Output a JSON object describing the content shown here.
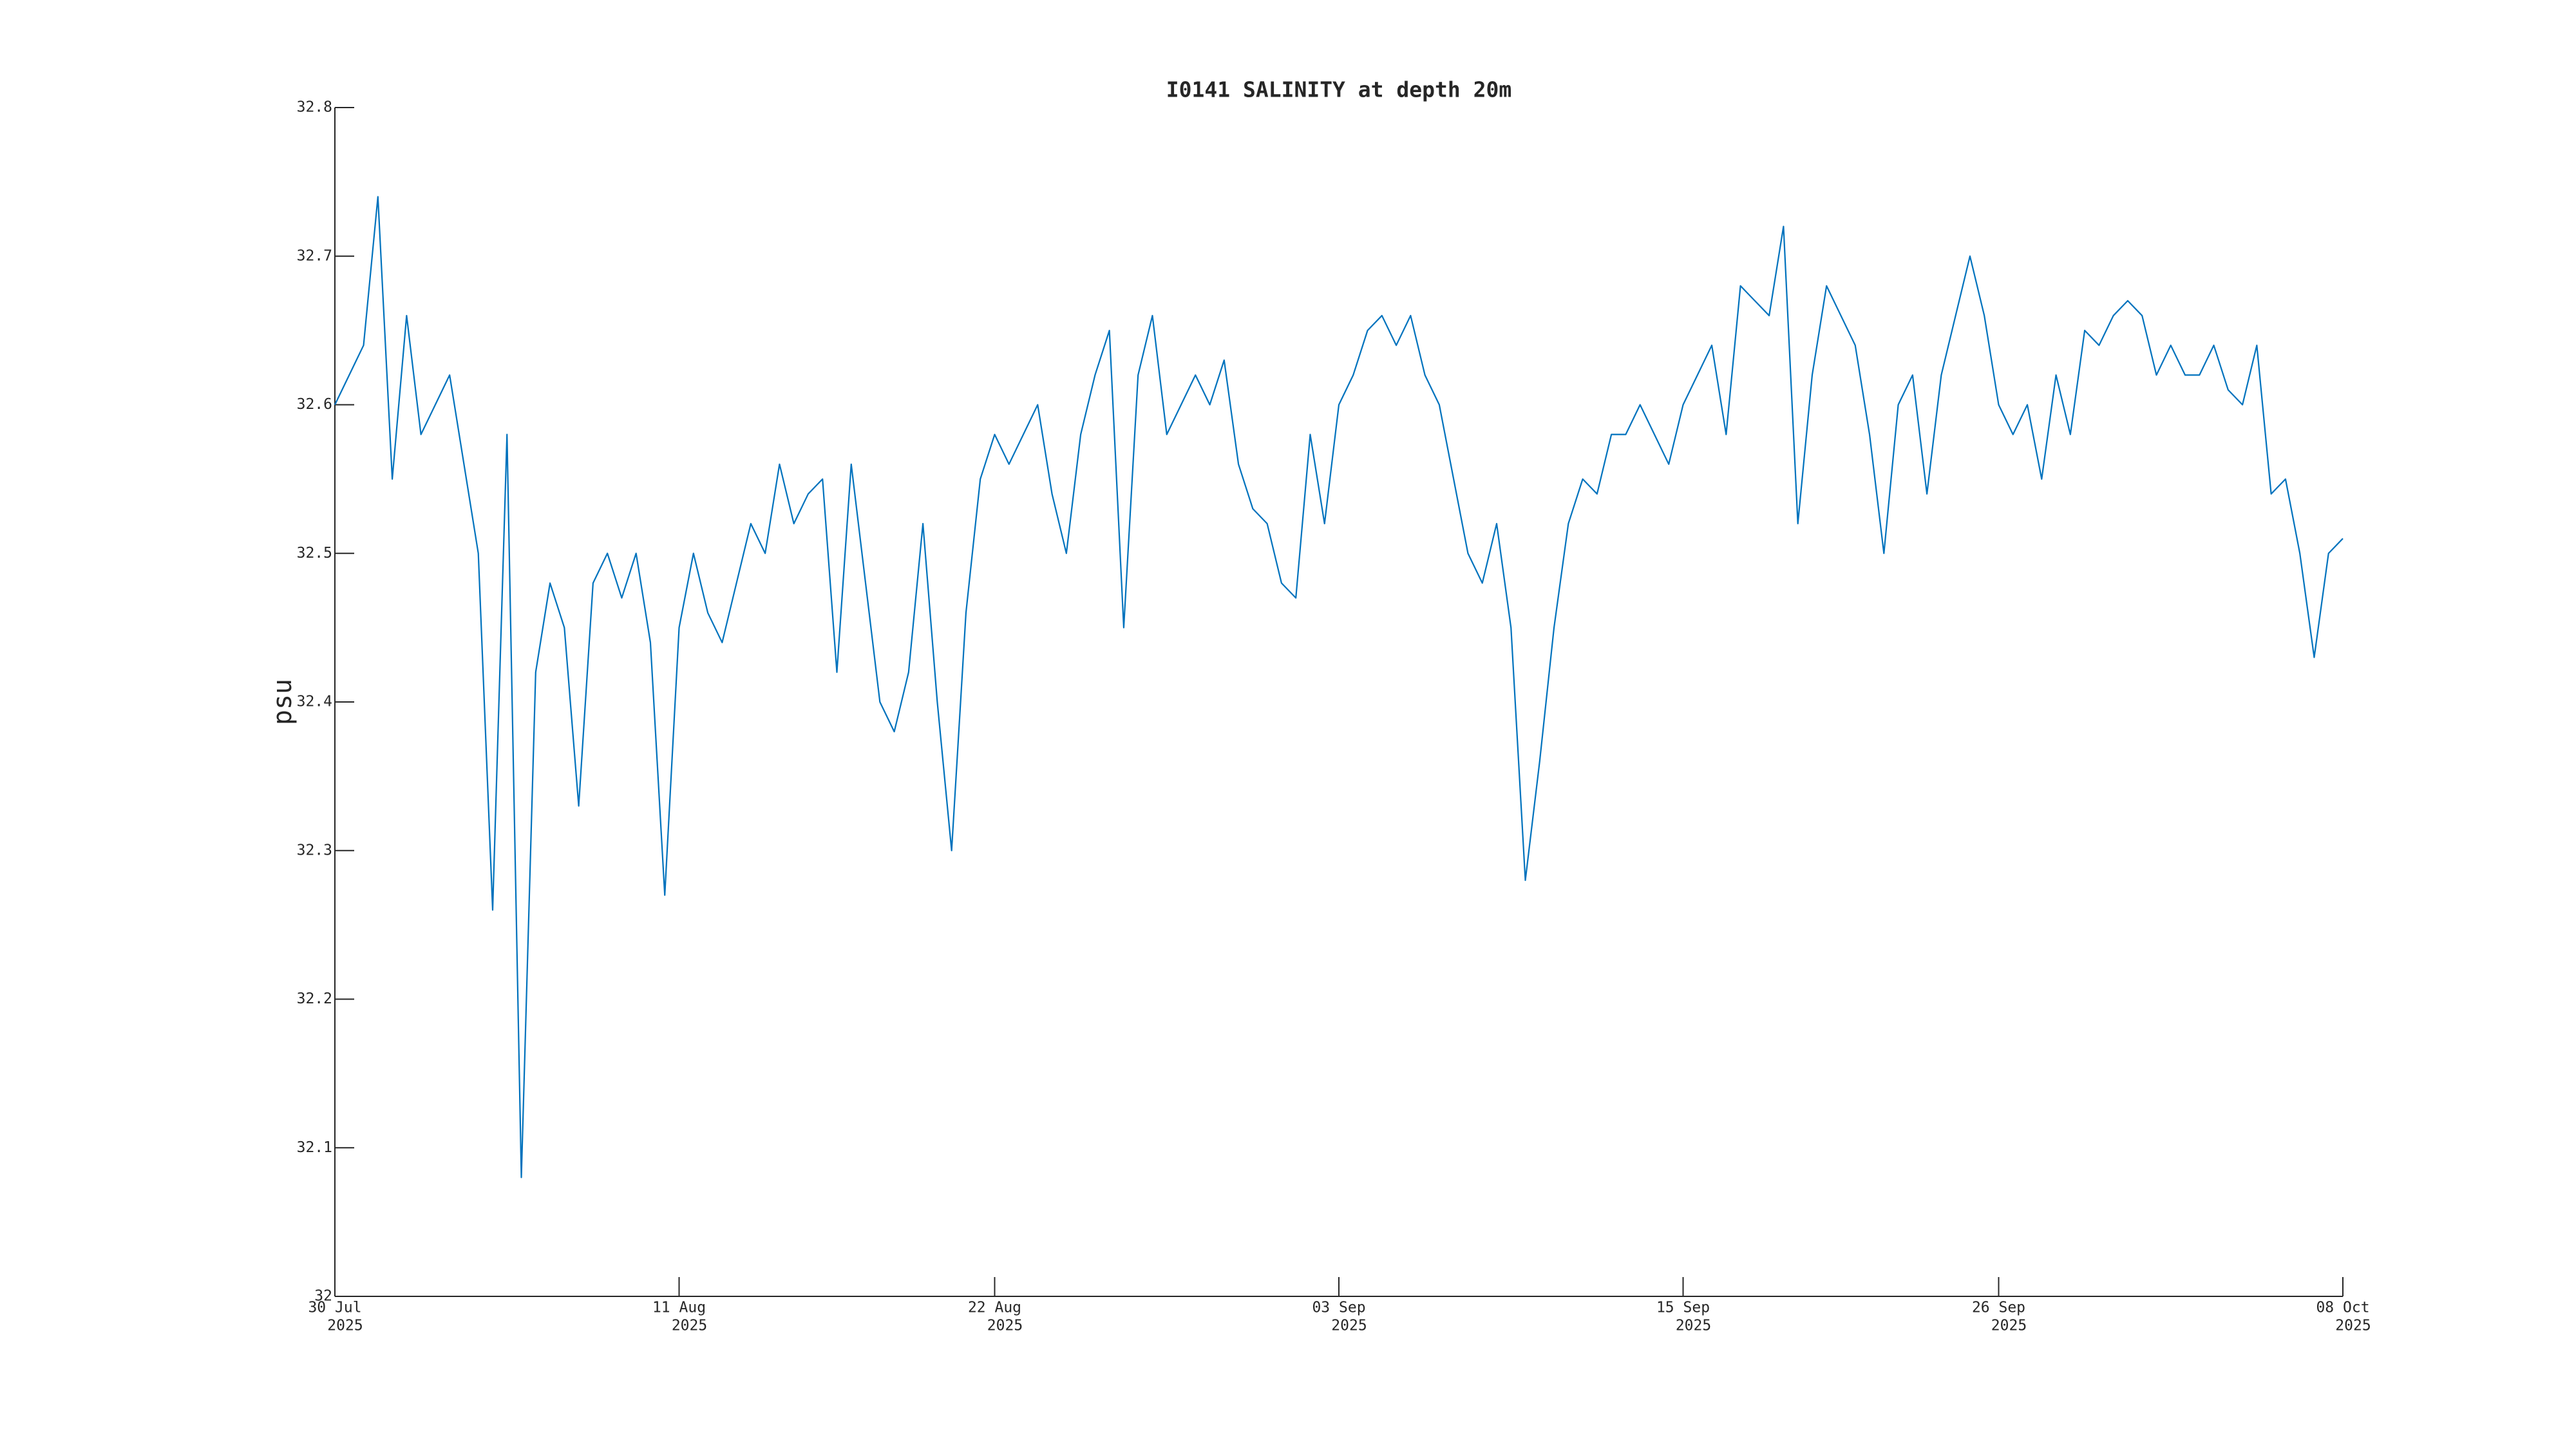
{
  "chart_data": {
    "type": "line",
    "title": "I0141 SALINITY at depth 20m",
    "y_label": "psu",
    "xlim": [
      "2025-07-30",
      "2025-10-08"
    ],
    "xticks": [
      {
        "value": "2025-07-30",
        "label": [
          "30 Jul",
          "2025"
        ]
      },
      {
        "value": "2025-08-11",
        "label": [
          "11 Aug",
          "2025"
        ]
      },
      {
        "value": "2025-08-22",
        "label": [
          "22 Aug",
          "2025"
        ]
      },
      {
        "value": "2025-09-03",
        "label": [
          "03 Sep",
          "2025"
        ]
      },
      {
        "value": "2025-09-15",
        "label": [
          "15 Sep",
          "2025"
        ]
      },
      {
        "value": "2025-09-26",
        "label": [
          "26 Sep",
          "2025"
        ]
      },
      {
        "value": "2025-10-08",
        "label": [
          "08 Oct",
          "2025"
        ]
      }
    ],
    "ylim": [
      32,
      32.8
    ],
    "yticks": [
      32,
      32.1,
      32.2,
      32.3,
      32.4,
      32.5,
      32.6,
      32.7,
      32.8
    ],
    "grid": false,
    "series": [
      {
        "color": "#0072bd",
        "x": [
          "2025-07-30 00:00",
          "2025-07-30 12:00",
          "2025-07-31 00:00",
          "2025-07-31 12:00",
          "2025-08-01 00:00",
          "2025-08-01 12:00",
          "2025-08-02 00:00",
          "2025-08-02 12:00",
          "2025-08-03 00:00",
          "2025-08-03 12:00",
          "2025-08-04 00:00",
          "2025-08-04 12:00",
          "2025-08-05 00:00",
          "2025-08-05 12:00",
          "2025-08-06 00:00",
          "2025-08-06 12:00",
          "2025-08-07 00:00",
          "2025-08-07 12:00",
          "2025-08-08 00:00",
          "2025-08-08 12:00",
          "2025-08-09 00:00",
          "2025-08-09 12:00",
          "2025-08-10 00:00",
          "2025-08-10 12:00",
          "2025-08-11 00:00",
          "2025-08-11 12:00",
          "2025-08-12 00:00",
          "2025-08-12 12:00",
          "2025-08-13 00:00",
          "2025-08-13 12:00",
          "2025-08-14 00:00",
          "2025-08-14 12:00",
          "2025-08-15 00:00",
          "2025-08-15 12:00",
          "2025-08-16 00:00",
          "2025-08-16 12:00",
          "2025-08-17 00:00",
          "2025-08-17 12:00",
          "2025-08-18 00:00",
          "2025-08-18 12:00",
          "2025-08-19 00:00",
          "2025-08-19 12:00",
          "2025-08-20 00:00",
          "2025-08-20 12:00",
          "2025-08-21 00:00",
          "2025-08-21 12:00",
          "2025-08-22 00:00",
          "2025-08-22 12:00",
          "2025-08-23 00:00",
          "2025-08-23 12:00",
          "2025-08-24 00:00",
          "2025-08-24 12:00",
          "2025-08-25 00:00",
          "2025-08-25 12:00",
          "2025-08-26 00:00",
          "2025-08-26 12:00",
          "2025-08-27 00:00",
          "2025-08-27 12:00",
          "2025-08-28 00:00",
          "2025-08-28 12:00",
          "2025-08-29 00:00",
          "2025-08-29 12:00",
          "2025-08-30 00:00",
          "2025-08-30 12:00",
          "2025-08-31 00:00",
          "2025-08-31 12:00",
          "2025-09-01 00:00",
          "2025-09-01 12:00",
          "2025-09-02 00:00",
          "2025-09-02 12:00",
          "2025-09-03 00:00",
          "2025-09-03 12:00",
          "2025-09-04 00:00",
          "2025-09-04 12:00",
          "2025-09-05 00:00",
          "2025-09-05 12:00",
          "2025-09-06 00:00",
          "2025-09-06 12:00",
          "2025-09-07 00:00",
          "2025-09-07 12:00",
          "2025-09-08 00:00",
          "2025-09-08 12:00",
          "2025-09-09 00:00",
          "2025-09-09 12:00",
          "2025-09-10 00:00",
          "2025-09-10 12:00",
          "2025-09-11 00:00",
          "2025-09-11 12:00",
          "2025-09-12 00:00",
          "2025-09-12 12:00",
          "2025-09-13 00:00",
          "2025-09-13 12:00",
          "2025-09-14 00:00",
          "2025-09-14 12:00",
          "2025-09-15 00:00",
          "2025-09-15 12:00",
          "2025-09-16 00:00",
          "2025-09-16 12:00",
          "2025-09-17 00:00",
          "2025-09-17 12:00",
          "2025-09-18 00:00",
          "2025-09-18 12:00",
          "2025-09-19 00:00",
          "2025-09-19 12:00",
          "2025-09-20 00:00",
          "2025-09-20 12:00",
          "2025-09-21 00:00",
          "2025-09-21 12:00",
          "2025-09-22 00:00",
          "2025-09-22 12:00",
          "2025-09-23 00:00",
          "2025-09-23 12:00",
          "2025-09-24 00:00",
          "2025-09-24 12:00",
          "2025-09-25 00:00",
          "2025-09-25 12:00",
          "2025-09-26 00:00",
          "2025-09-26 12:00",
          "2025-09-27 00:00",
          "2025-09-27 12:00",
          "2025-09-28 00:00",
          "2025-09-28 12:00",
          "2025-09-29 00:00",
          "2025-09-29 12:00",
          "2025-09-30 00:00",
          "2025-09-30 12:00",
          "2025-10-01 00:00",
          "2025-10-01 12:00",
          "2025-10-02 00:00",
          "2025-10-02 12:00",
          "2025-10-03 00:00",
          "2025-10-03 12:00",
          "2025-10-04 00:00",
          "2025-10-04 12:00",
          "2025-10-05 00:00",
          "2025-10-05 12:00",
          "2025-10-06 00:00",
          "2025-10-06 12:00",
          "2025-10-07 00:00",
          "2025-10-07 12:00",
          "2025-10-08 00:00"
        ],
        "values": [
          32.6,
          32.62,
          32.64,
          32.74,
          32.55,
          32.66,
          32.58,
          32.6,
          32.62,
          32.56,
          32.5,
          32.26,
          32.58,
          32.08,
          32.42,
          32.48,
          32.45,
          32.33,
          32.48,
          32.5,
          32.47,
          32.5,
          32.44,
          32.27,
          32.45,
          32.5,
          32.46,
          32.44,
          32.48,
          32.52,
          32.5,
          32.56,
          32.52,
          32.54,
          32.55,
          32.42,
          32.56,
          32.48,
          32.4,
          32.38,
          32.42,
          32.52,
          32.4,
          32.3,
          32.46,
          32.55,
          32.58,
          32.56,
          32.58,
          32.6,
          32.54,
          32.5,
          32.58,
          32.62,
          32.65,
          32.45,
          32.62,
          32.66,
          32.58,
          32.6,
          32.62,
          32.6,
          32.63,
          32.56,
          32.53,
          32.52,
          32.48,
          32.47,
          32.58,
          32.52,
          32.6,
          32.62,
          32.65,
          32.66,
          32.64,
          32.66,
          32.62,
          32.6,
          32.55,
          32.5,
          32.48,
          32.52,
          32.45,
          32.28,
          32.36,
          32.45,
          32.52,
          32.55,
          32.54,
          32.58,
          32.58,
          32.6,
          32.58,
          32.56,
          32.6,
          32.62,
          32.64,
          32.58,
          32.68,
          32.67,
          32.66,
          32.72,
          32.52,
          32.62,
          32.68,
          32.66,
          32.64,
          32.58,
          32.5,
          32.6,
          32.62,
          32.54,
          32.62,
          32.66,
          32.7,
          32.66,
          32.6,
          32.58,
          32.6,
          32.55,
          32.62,
          32.58,
          32.65,
          32.64,
          32.66,
          32.67,
          32.66,
          32.62,
          32.64,
          32.62,
          32.62,
          32.64,
          32.61,
          32.6,
          32.64,
          32.54,
          32.55,
          32.5,
          32.43,
          32.5,
          32.51
        ]
      }
    ]
  }
}
